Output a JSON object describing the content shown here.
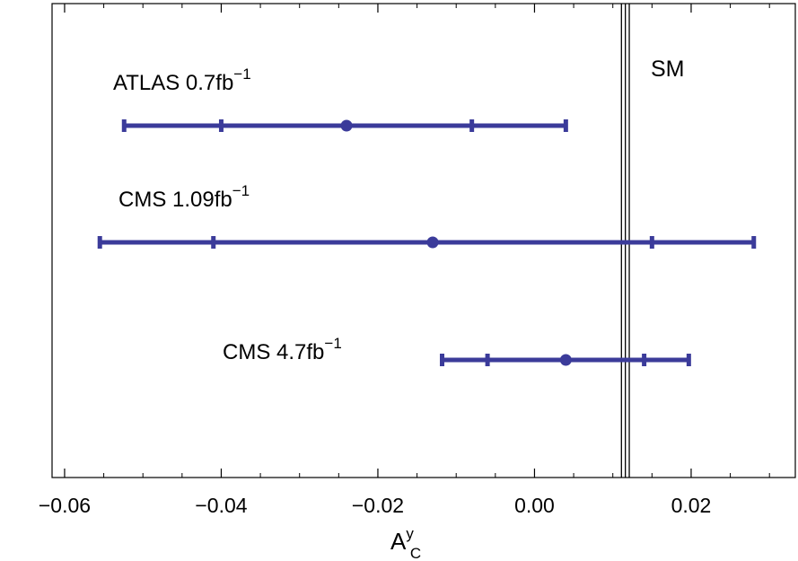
{
  "chart_data": {
    "type": "scatter",
    "title": "",
    "xlabel": {
      "base": "A",
      "sup": "y",
      "sub": "C"
    },
    "ylabel": "",
    "xlim": [
      -0.0616,
      0.0333
    ],
    "x_ticks": [
      {
        "value": -0.06,
        "label": "−0.06"
      },
      {
        "value": -0.04,
        "label": "−0.04"
      },
      {
        "value": -0.02,
        "label": "−0.02"
      },
      {
        "value": 0.0,
        "label": "0.00"
      },
      {
        "value": 0.02,
        "label": "0.02"
      }
    ],
    "measurements": [
      {
        "label": "ATLAS 0.7fb",
        "sup": "−1",
        "central": -0.024,
        "inner": [
          -0.04,
          -0.008
        ],
        "outer": [
          -0.0524,
          0.004
        ]
      },
      {
        "label": "CMS 1.09fb",
        "sup": "−1",
        "central": -0.013,
        "inner": [
          -0.041,
          0.015
        ],
        "outer": [
          -0.0555,
          0.028
        ]
      },
      {
        "label": "CMS 4.7fb",
        "sup": "−1",
        "central": 0.004,
        "inner": [
          -0.006,
          0.014
        ],
        "outer": [
          -0.0118,
          0.0197
        ]
      }
    ],
    "reference": {
      "label": "SM",
      "lines": [
        0.0111,
        0.0116,
        0.0121
      ]
    },
    "colors": {
      "series": "#3b3b9a",
      "reference": "#000000",
      "frame": "#000000"
    },
    "grid": false,
    "legend": "none"
  }
}
